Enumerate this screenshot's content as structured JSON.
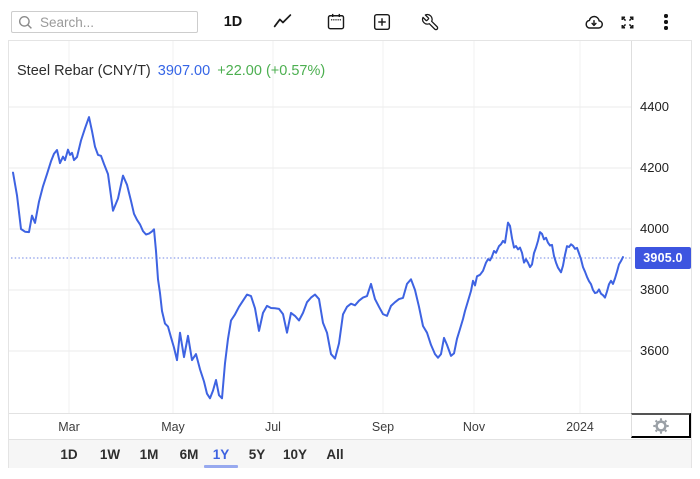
{
  "toolbar": {
    "search_placeholder": "Search...",
    "interval_label": "1D",
    "icons": [
      "search-icon",
      "line-chart-icon",
      "calendar-icon",
      "add-panel-icon",
      "tools-wrench-icon",
      "cloud-download-icon",
      "fullscreen-icon",
      "more-menu-icon"
    ]
  },
  "header": {
    "title": "Steel Rebar (CNY/T)",
    "price": "3907.00",
    "change": "+22.00 (+0.57%)"
  },
  "range": {
    "items": [
      "1D",
      "1W",
      "1M",
      "6M",
      "1Y",
      "5Y",
      "10Y",
      "All"
    ],
    "active": "1Y"
  },
  "colors": {
    "line_blue": "#3E63E2",
    "badge_blue": "#3D55E0",
    "price_blue": "#3565E6",
    "up_green": "#4CAF50",
    "active_tab_blue": "#3D62E0",
    "tab_underline": "#97A9EF",
    "marked_line_blue": "#7287E6",
    "grid_h": "#EBEBEB",
    "grid_v": "#F2F2F2"
  },
  "chart_data": {
    "type": "line",
    "title": "Steel Rebar (CNY/T)",
    "unit": "CNY/T",
    "last_price": 3907.0,
    "change_abs": 22.0,
    "change_pct": 0.57,
    "marked_level": 3905.0,
    "marked_level_label": "3905.0",
    "grid": "on",
    "legend": "none",
    "y_ticks": [
      3600,
      3800,
      4000,
      4200,
      4400
    ],
    "ylim": [
      3400,
      4460
    ],
    "x_ticks": [
      {
        "label": "Mar",
        "f": 0.0918
      },
      {
        "label": "May",
        "f": 0.2623
      },
      {
        "label": "Jul",
        "f": 0.4262
      },
      {
        "label": "Sep",
        "f": 0.6066
      },
      {
        "label": "Nov",
        "f": 0.7557
      },
      {
        "label": "2024",
        "f": 0.9295
      }
    ],
    "series": [
      {
        "name": "Steel Rebar price",
        "color": "#3E63E2",
        "points": [
          [
            0,
            4185
          ],
          [
            0.0066,
            4110
          ],
          [
            0.0131,
            4000
          ],
          [
            0.0197,
            3991
          ],
          [
            0.0262,
            3990
          ],
          [
            0.0311,
            4044
          ],
          [
            0.0361,
            4020
          ],
          [
            0.0426,
            4090
          ],
          [
            0.0492,
            4140
          ],
          [
            0.0557,
            4180
          ],
          [
            0.0623,
            4222
          ],
          [
            0.0672,
            4247
          ],
          [
            0.0721,
            4259
          ],
          [
            0.077,
            4216
          ],
          [
            0.082,
            4237
          ],
          [
            0.0852,
            4226
          ],
          [
            0.0902,
            4260
          ],
          [
            0.0934,
            4243
          ],
          [
            0.0967,
            4250
          ],
          [
            0.1,
            4226
          ],
          [
            0.1049,
            4236
          ],
          [
            0.1115,
            4290
          ],
          [
            0.118,
            4330
          ],
          [
            0.1246,
            4367
          ],
          [
            0.1295,
            4321
          ],
          [
            0.1344,
            4270
          ],
          [
            0.1393,
            4243
          ],
          [
            0.1443,
            4240
          ],
          [
            0.1492,
            4213
          ],
          [
            0.1557,
            4180
          ],
          [
            0.1639,
            4060
          ],
          [
            0.1721,
            4100
          ],
          [
            0.1803,
            4175
          ],
          [
            0.1869,
            4145
          ],
          [
            0.1934,
            4092
          ],
          [
            0.1984,
            4050
          ],
          [
            0.2033,
            4030
          ],
          [
            0.2082,
            4015
          ],
          [
            0.2131,
            3993
          ],
          [
            0.218,
            3982
          ],
          [
            0.223,
            3985
          ],
          [
            0.2279,
            3992
          ],
          [
            0.2311,
            3999
          ],
          [
            0.2344,
            3928
          ],
          [
            0.2377,
            3835
          ],
          [
            0.241,
            3790
          ],
          [
            0.2443,
            3731
          ],
          [
            0.2492,
            3690
          ],
          [
            0.2541,
            3680
          ],
          [
            0.259,
            3645
          ],
          [
            0.2639,
            3611
          ],
          [
            0.2689,
            3570
          ],
          [
            0.2738,
            3660
          ],
          [
            0.2803,
            3580
          ],
          [
            0.2869,
            3650
          ],
          [
            0.2934,
            3570
          ],
          [
            0.3,
            3590
          ],
          [
            0.3066,
            3540
          ],
          [
            0.3131,
            3500
          ],
          [
            0.318,
            3460
          ],
          [
            0.323,
            3445
          ],
          [
            0.3279,
            3470
          ],
          [
            0.3328,
            3505
          ],
          [
            0.3377,
            3455
          ],
          [
            0.3426,
            3445
          ],
          [
            0.3475,
            3560
          ],
          [
            0.3525,
            3640
          ],
          [
            0.3574,
            3700
          ],
          [
            0.3639,
            3720
          ],
          [
            0.3705,
            3745
          ],
          [
            0.377,
            3765
          ],
          [
            0.3836,
            3785
          ],
          [
            0.3902,
            3780
          ],
          [
            0.3967,
            3740
          ],
          [
            0.4033,
            3666
          ],
          [
            0.4098,
            3725
          ],
          [
            0.4164,
            3748
          ],
          [
            0.423,
            3741
          ],
          [
            0.4295,
            3740
          ],
          [
            0.4361,
            3738
          ],
          [
            0.4426,
            3721
          ],
          [
            0.4492,
            3660
          ],
          [
            0.4557,
            3725
          ],
          [
            0.4623,
            3715
          ],
          [
            0.4689,
            3700
          ],
          [
            0.4754,
            3725
          ],
          [
            0.482,
            3760
          ],
          [
            0.4885,
            3775
          ],
          [
            0.4951,
            3785
          ],
          [
            0.5016,
            3770
          ],
          [
            0.5082,
            3692
          ],
          [
            0.5148,
            3660
          ],
          [
            0.5213,
            3590
          ],
          [
            0.5279,
            3575
          ],
          [
            0.5344,
            3625
          ],
          [
            0.541,
            3720
          ],
          [
            0.5475,
            3745
          ],
          [
            0.5541,
            3755
          ],
          [
            0.5607,
            3750
          ],
          [
            0.5672,
            3765
          ],
          [
            0.5738,
            3775
          ],
          [
            0.5803,
            3780
          ],
          [
            0.5869,
            3820
          ],
          [
            0.5934,
            3770
          ],
          [
            0.6,
            3745
          ],
          [
            0.6066,
            3721
          ],
          [
            0.6131,
            3715
          ],
          [
            0.6197,
            3748
          ],
          [
            0.6262,
            3760
          ],
          [
            0.6328,
            3770
          ],
          [
            0.6393,
            3774
          ],
          [
            0.6459,
            3820
          ],
          [
            0.6525,
            3835
          ],
          [
            0.659,
            3800
          ],
          [
            0.6656,
            3745
          ],
          [
            0.6721,
            3682
          ],
          [
            0.6787,
            3660
          ],
          [
            0.6852,
            3620
          ],
          [
            0.6918,
            3590
          ],
          [
            0.6967,
            3578
          ],
          [
            0.7016,
            3590
          ],
          [
            0.7066,
            3643
          ],
          [
            0.7115,
            3620
          ],
          [
            0.718,
            3584
          ],
          [
            0.723,
            3592
          ],
          [
            0.7279,
            3640
          ],
          [
            0.7328,
            3672
          ],
          [
            0.7377,
            3705
          ],
          [
            0.741,
            3731
          ],
          [
            0.7459,
            3764
          ],
          [
            0.7508,
            3797
          ],
          [
            0.7541,
            3830
          ],
          [
            0.7574,
            3815
          ],
          [
            0.7607,
            3845
          ],
          [
            0.7656,
            3850
          ],
          [
            0.7705,
            3863
          ],
          [
            0.7754,
            3890
          ],
          [
            0.7787,
            3901
          ],
          [
            0.782,
            3897
          ],
          [
            0.7852,
            3910
          ],
          [
            0.7885,
            3928
          ],
          [
            0.7918,
            3922
          ],
          [
            0.7967,
            3944
          ],
          [
            0.8,
            3950
          ],
          [
            0.8033,
            3961
          ],
          [
            0.8066,
            3955
          ],
          [
            0.8115,
            4021
          ],
          [
            0.8148,
            4010
          ],
          [
            0.818,
            3970
          ],
          [
            0.8213,
            3939
          ],
          [
            0.8246,
            3944
          ],
          [
            0.8279,
            3933
          ],
          [
            0.8311,
            3939
          ],
          [
            0.8344,
            3922
          ],
          [
            0.8377,
            3890
          ],
          [
            0.841,
            3901
          ],
          [
            0.8443,
            3890
          ],
          [
            0.8475,
            3875
          ],
          [
            0.8508,
            3884
          ],
          [
            0.8541,
            3921
          ],
          [
            0.8574,
            3939
          ],
          [
            0.8607,
            3961
          ],
          [
            0.8639,
            3990
          ],
          [
            0.8672,
            3984
          ],
          [
            0.8705,
            3966
          ],
          [
            0.8738,
            3971
          ],
          [
            0.877,
            3955
          ],
          [
            0.8803,
            3946
          ],
          [
            0.8836,
            3948
          ],
          [
            0.8869,
            3911
          ],
          [
            0.8902,
            3890
          ],
          [
            0.8934,
            3873
          ],
          [
            0.8984,
            3858
          ],
          [
            0.9016,
            3880
          ],
          [
            0.9049,
            3915
          ],
          [
            0.9082,
            3944
          ],
          [
            0.9115,
            3941
          ],
          [
            0.9148,
            3950
          ],
          [
            0.918,
            3945
          ],
          [
            0.9213,
            3935
          ],
          [
            0.9246,
            3938
          ],
          [
            0.9279,
            3920
          ],
          [
            0.9311,
            3901
          ],
          [
            0.9344,
            3875
          ],
          [
            0.9377,
            3860
          ],
          [
            0.941,
            3843
          ],
          [
            0.9443,
            3829
          ],
          [
            0.9475,
            3819
          ],
          [
            0.9508,
            3800
          ],
          [
            0.9541,
            3790
          ],
          [
            0.9574,
            3792
          ],
          [
            0.9607,
            3802
          ],
          [
            0.9639,
            3788
          ],
          [
            0.9672,
            3783
          ],
          [
            0.9705,
            3775
          ],
          [
            0.9738,
            3795
          ],
          [
            0.977,
            3819
          ],
          [
            0.9803,
            3830
          ],
          [
            0.9836,
            3820
          ],
          [
            0.9869,
            3838
          ],
          [
            0.9902,
            3860
          ],
          [
            0.9934,
            3884
          ],
          [
            0.9967,
            3895
          ],
          [
            1,
            3908
          ]
        ]
      }
    ]
  }
}
